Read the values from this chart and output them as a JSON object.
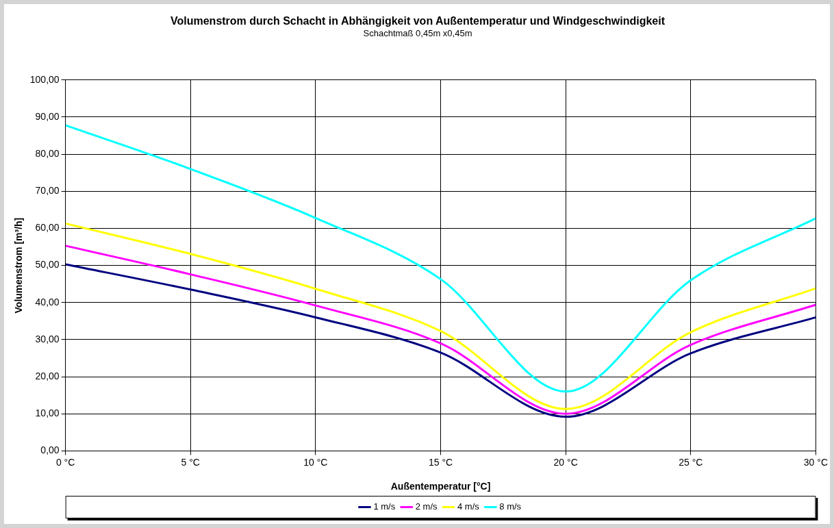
{
  "chart_data": {
    "type": "line",
    "title": "Volumenstrom durch Schacht in Abhängigkeit von Außentemperatur und Windgeschwindigkeit",
    "subtitle": "Schachtmaß 0,45m x0,45m",
    "xlabel": "Außentemperatur [°C]",
    "ylabel": "Volumenstrom [m³/h]",
    "x": [
      0,
      5,
      10,
      15,
      20,
      25,
      30
    ],
    "series": [
      {
        "name": "1 m/s",
        "color": "#000080",
        "values": [
          50.3,
          43.5,
          36,
          26.5,
          9.2,
          26.3,
          36
        ]
      },
      {
        "name": "2 m/s",
        "color": "#ff00ff",
        "values": [
          55.3,
          47.6,
          39.2,
          29,
          10,
          28.6,
          39.4
        ]
      },
      {
        "name": "4 m/s",
        "color": "#ffff00",
        "values": [
          61.3,
          53.1,
          43.7,
          32.3,
          11.3,
          32,
          43.8
        ]
      },
      {
        "name": "8 m/s",
        "color": "#00ffff",
        "values": [
          87.8,
          76,
          62.8,
          46.3,
          16,
          46,
          62.7
        ]
      }
    ],
    "xlim": [
      0,
      30
    ],
    "xticks": [
      {
        "value": 0,
        "label": "0 °C"
      },
      {
        "value": 5,
        "label": "5 °C"
      },
      {
        "value": 10,
        "label": "10 °C"
      },
      {
        "value": 15,
        "label": "15 °C"
      },
      {
        "value": 20,
        "label": "20 °C"
      },
      {
        "value": 25,
        "label": "25 °C"
      },
      {
        "value": 30,
        "label": "30 °C"
      }
    ],
    "ylim": [
      0,
      100
    ],
    "yticks": [
      {
        "value": 0,
        "label": "0,00"
      },
      {
        "value": 10,
        "label": "10,00"
      },
      {
        "value": 20,
        "label": "20,00"
      },
      {
        "value": 30,
        "label": "30,00"
      },
      {
        "value": 40,
        "label": "40,00"
      },
      {
        "value": 50,
        "label": "50,00"
      },
      {
        "value": 60,
        "label": "60,00"
      },
      {
        "value": 70,
        "label": "70,00"
      },
      {
        "value": 80,
        "label": "80,00"
      },
      {
        "value": 90,
        "label": "90,00"
      },
      {
        "value": 100,
        "label": "100,00"
      }
    ],
    "grid": true,
    "legend": "bottom",
    "marker": "none",
    "line_style": "solid"
  }
}
